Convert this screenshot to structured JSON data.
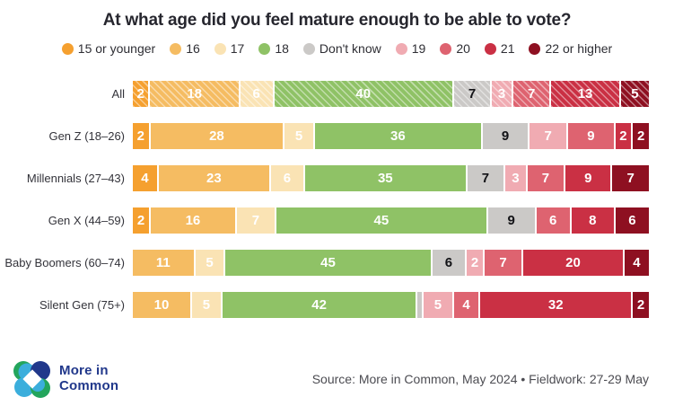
{
  "title": "At what age did you feel mature enough to be able to vote?",
  "footer": {
    "source": "Source: More in Common, May 2024 • Fieldwork: 27-29 May",
    "logo_line1": "More in",
    "logo_line2": "Common",
    "logo_colors": {
      "green": "#23A55C",
      "navy": "#21388B",
      "light_blue": "#3BAEDC"
    }
  },
  "chart_data": {
    "type": "bar",
    "stacked": true,
    "orientation": "horizontal",
    "title": "At what age did you feel mature enough to be able to vote?",
    "legend_position": "top",
    "grid": false,
    "xlim": [
      0,
      100
    ],
    "series_labels": [
      "15 or younger",
      "16",
      "17",
      "18",
      "Don't know",
      "19",
      "20",
      "21",
      "22 or higher"
    ],
    "series_colors": [
      "#F5A02F",
      "#F5BC62",
      "#FAE3B4",
      "#8FC266",
      "#CBC9C7",
      "#F0ABB2",
      "#DE6370",
      "#CA3044",
      "#8E1021"
    ],
    "dark_text_series": [
      "Don't know"
    ],
    "value_label_min": 2,
    "categories": [
      "All",
      "Gen Z (18–26)",
      "Millennials (27–43)",
      "Gen X (44–59)",
      "Baby Boomers (60–74)",
      "Silent Gen (75+)"
    ],
    "rows": [
      {
        "category": "All",
        "hatched": true,
        "values": [
          2,
          18,
          6,
          40,
          7,
          3,
          7,
          13,
          5
        ]
      },
      {
        "category": "Gen Z (18–26)",
        "hatched": false,
        "values": [
          2,
          28,
          5,
          36,
          9,
          7,
          9,
          2,
          2
        ]
      },
      {
        "category": "Millennials (27–43)",
        "hatched": false,
        "values": [
          4,
          23,
          6,
          35,
          7,
          3,
          7,
          9,
          7
        ]
      },
      {
        "category": "Gen X (44–59)",
        "hatched": false,
        "values": [
          2,
          16,
          7,
          45,
          9,
          0,
          6,
          8,
          6
        ]
      },
      {
        "category": "Baby Boomers (60–74)",
        "hatched": false,
        "values": [
          0,
          11,
          5,
          45,
          6,
          2,
          7,
          20,
          4
        ]
      },
      {
        "category": "Silent Gen (75+)",
        "hatched": false,
        "values": [
          0,
          10,
          5,
          42,
          1,
          5,
          4,
          32,
          2
        ]
      }
    ]
  }
}
